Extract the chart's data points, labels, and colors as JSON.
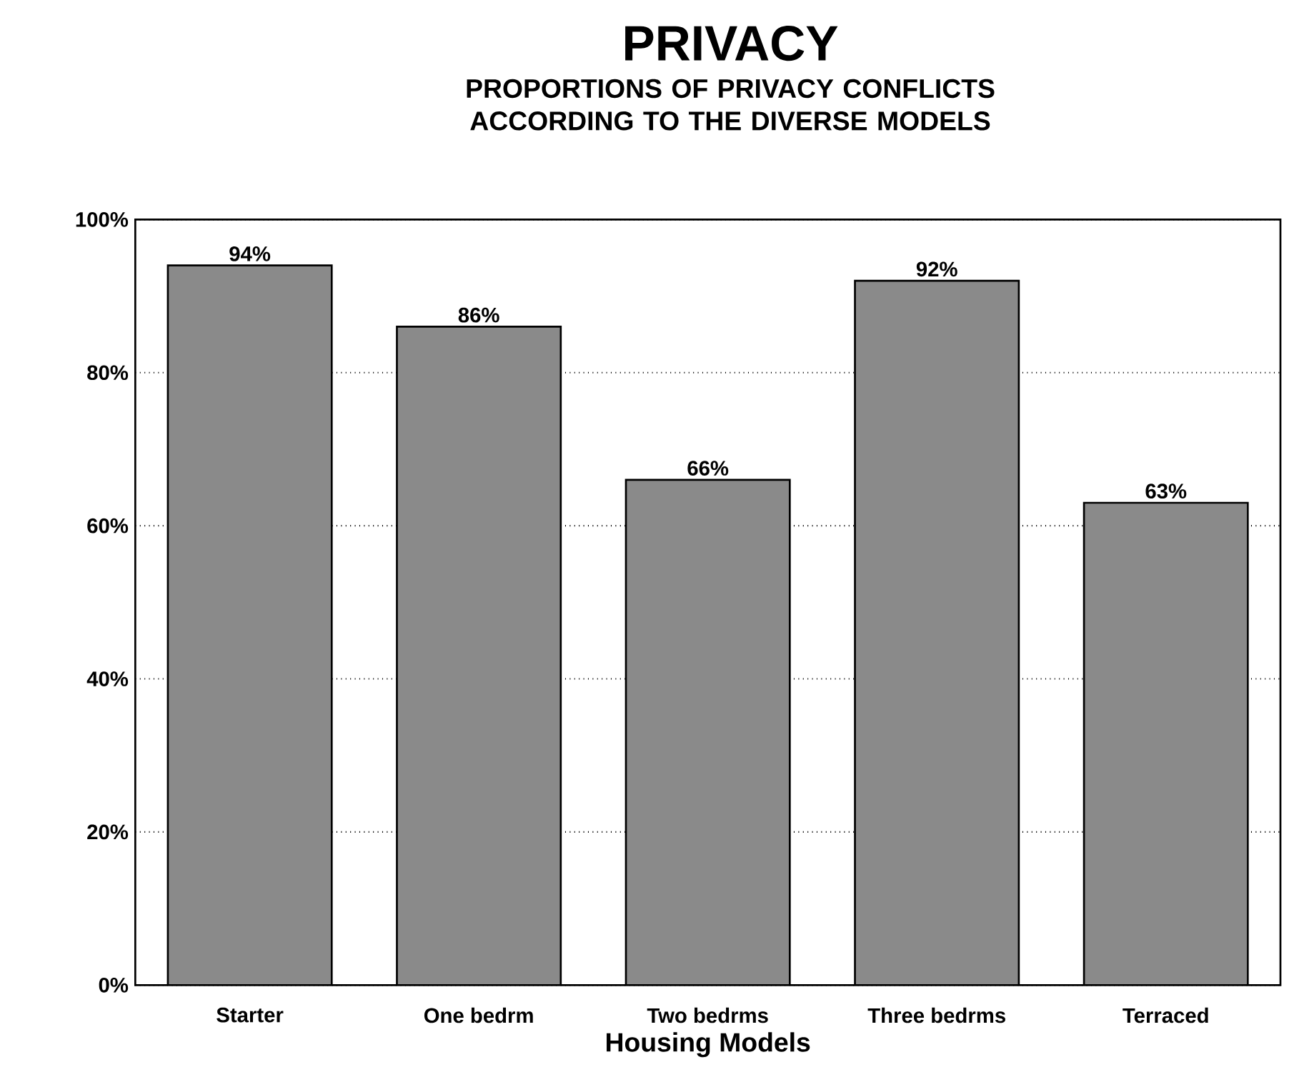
{
  "chart_data": {
    "type": "bar",
    "title": "PRIVACY",
    "subtitle": "PROPORTIONS OF PRIVACY CONFLICTS ACCORDING TO THE DIVERSE MODELS",
    "xlabel": "Housing Models",
    "categories": [
      "Starter",
      "One bedrm",
      "Two bedrms",
      "Three bedrms",
      "Terraced"
    ],
    "values": [
      94,
      86,
      66,
      92,
      63
    ],
    "value_labels": [
      "94%",
      "86%",
      "66%",
      "92%",
      "63%"
    ],
    "color": "#8a8a8a",
    "ylim": [
      0,
      100
    ],
    "yticks": [
      {
        "value": 0,
        "label": "0%"
      },
      {
        "value": 20,
        "label": "20%"
      },
      {
        "value": 40,
        "label": "40%"
      },
      {
        "value": 60,
        "label": "60%"
      },
      {
        "value": 80,
        "label": "80%"
      },
      {
        "value": 100,
        "label": "100%"
      }
    ],
    "grid": "y"
  }
}
